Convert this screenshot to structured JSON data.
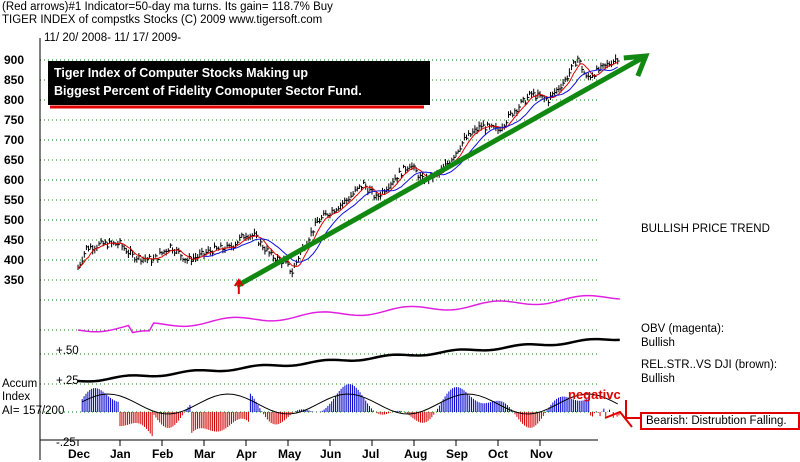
{
  "header": {
    "line1": "(Red arrows)#1 Indicator=50-day ma turns. Its gain= 118.7% Buy",
    "line2": "TIGER INDEX of compstks Stocks  (C) 2009  www.tigersoft.com",
    "line3": "11/ 20/ 2008- 11/ 17/ 2009-"
  },
  "annotation": {
    "title1": "Tiger Index of Computer Stocks Making up",
    "title2": "Biggest Percent of Fidelity Comoputer Sector Fund."
  },
  "side_labels": {
    "trend": "BULLISH PRICE TREND",
    "obv_title": "OBV (magenta):",
    "obv_value": "Bullish",
    "rs_title": "REL.STR..VS DJI (brown):",
    "rs_value": "Bullish",
    "negative": "negativc",
    "bearish": "Bearish:  Distrubtion Falling."
  },
  "accum": {
    "label1": "Accum",
    "label2": "Index",
    "label3": "AI= 157/200",
    "level_top": "+.50",
    "level_mid": "+.25",
    "level_bot": "-.25"
  },
  "colors": {
    "price_bar": "#000000",
    "ma_red": "#e00000",
    "ma_blue": "#1010e0",
    "trendline": "#118811",
    "obv": "#e020e0",
    "relstr": "#000000",
    "accum_pos": "#0000d0",
    "accum_neg": "#d00000",
    "grid": "#008800"
  },
  "chart_data": {
    "type": "line",
    "title": "TIGER INDEX of compstks Stocks",
    "date_range": "11/20/2008 - 11/17/2009",
    "x_ticks": [
      "Dec",
      "Jan",
      "Feb",
      "Mar",
      "Apr",
      "May",
      "Jun",
      "Jul",
      "Aug",
      "Sep",
      "Oct",
      "Nov"
    ],
    "y_ticks": [
      350,
      400,
      450,
      500,
      550,
      600,
      650,
      700,
      750,
      800,
      850,
      900
    ],
    "ylim": [
      320,
      920
    ],
    "price_series_monthly": [
      {
        "t": 0.0,
        "v": 380
      },
      {
        "t": 0.2,
        "v": 430
      },
      {
        "t": 0.6,
        "v": 440
      },
      {
        "t": 1.0,
        "v": 440
      },
      {
        "t": 1.3,
        "v": 410
      },
      {
        "t": 1.8,
        "v": 400
      },
      {
        "t": 2.2,
        "v": 435
      },
      {
        "t": 2.6,
        "v": 400
      },
      {
        "t": 2.9,
        "v": 410
      },
      {
        "t": 3.2,
        "v": 425
      },
      {
        "t": 3.6,
        "v": 430
      },
      {
        "t": 4.0,
        "v": 465
      },
      {
        "t": 4.2,
        "v": 460
      },
      {
        "t": 4.6,
        "v": 410
      },
      {
        "t": 4.9,
        "v": 395
      },
      {
        "t": 5.1,
        "v": 370
      },
      {
        "t": 5.3,
        "v": 420
      },
      {
        "t": 5.7,
        "v": 495
      },
      {
        "t": 6.0,
        "v": 520
      },
      {
        "t": 6.4,
        "v": 550
      },
      {
        "t": 6.8,
        "v": 590
      },
      {
        "t": 7.1,
        "v": 555
      },
      {
        "t": 7.5,
        "v": 600
      },
      {
        "t": 7.9,
        "v": 640
      },
      {
        "t": 8.2,
        "v": 600
      },
      {
        "t": 8.6,
        "v": 615
      },
      {
        "t": 8.9,
        "v": 655
      },
      {
        "t": 9.2,
        "v": 700
      },
      {
        "t": 9.6,
        "v": 735
      },
      {
        "t": 10.0,
        "v": 725
      },
      {
        "t": 10.4,
        "v": 775
      },
      {
        "t": 10.8,
        "v": 815
      },
      {
        "t": 11.2,
        "v": 800
      },
      {
        "t": 11.6,
        "v": 850
      },
      {
        "t": 11.9,
        "v": 905
      },
      {
        "t": 12.1,
        "v": 855
      },
      {
        "t": 12.5,
        "v": 880
      },
      {
        "t": 12.9,
        "v": 910
      }
    ],
    "trendline": {
      "from": {
        "t": 3.9,
        "v": 365
      },
      "to": {
        "t": 13.4,
        "v": 905
      }
    },
    "buy_arrow": {
      "t": 3.9,
      "label": "Buy"
    },
    "indicators": [
      "50-day ma (red)",
      "OBV (magenta)",
      "REL.STR. VS DJI (brown)",
      "Accum Index"
    ]
  }
}
